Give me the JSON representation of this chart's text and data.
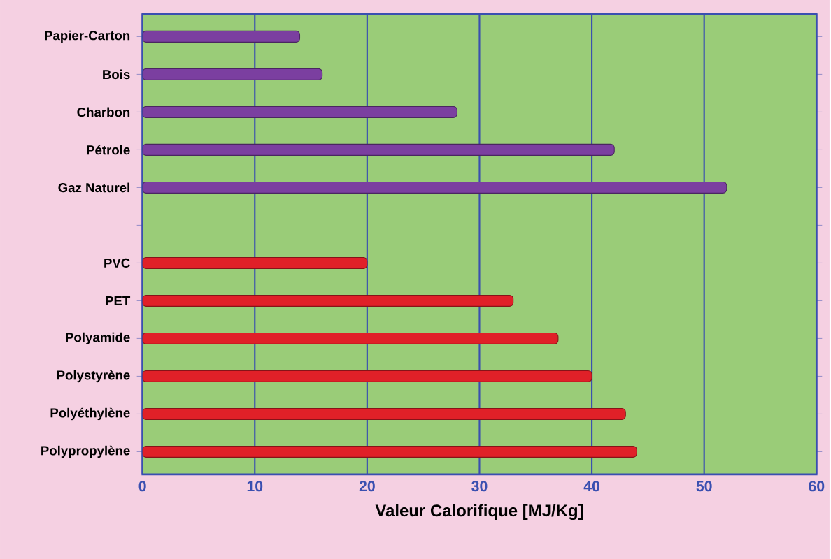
{
  "chart_data": {
    "type": "bar",
    "orientation": "horizontal",
    "xlabel": "Valeur Calorifique [MJ/Kg]",
    "categories": [
      "Papier-Carton",
      "Bois",
      "Charbon",
      "Pétrole",
      "Gaz Naturel",
      null,
      "PVC",
      "PET",
      "Polyamide",
      "Polystyrène",
      "Polyéthylène",
      "Polypropylène"
    ],
    "values": [
      14,
      16,
      28,
      42,
      52,
      null,
      20,
      33,
      37,
      40,
      43,
      44
    ],
    "colors": [
      "#7b3fa0",
      "#7b3fa0",
      "#7b3fa0",
      "#7b3fa0",
      "#7b3fa0",
      null,
      "#e02028",
      "#e02028",
      "#e02028",
      "#e02028",
      "#e02028",
      "#e02028"
    ],
    "xlim": [
      0,
      60
    ],
    "xticks": [
      0,
      10,
      20,
      30,
      40,
      50,
      60
    ],
    "grid": "x"
  }
}
